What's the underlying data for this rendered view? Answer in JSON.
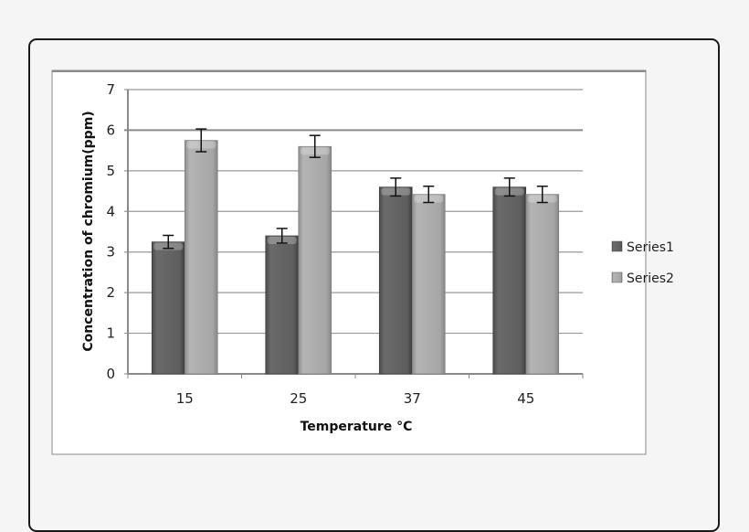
{
  "chart_data": {
    "type": "bar",
    "title": "",
    "xlabel": "Temperature °C",
    "ylabel": "Concentration of chromium(ppm)",
    "categories": [
      "15",
      "25",
      "37",
      "45"
    ],
    "series": [
      {
        "name": "Series1",
        "values": [
          3.25,
          3.4,
          4.6,
          4.6
        ],
        "error": [
          0.16,
          0.18,
          0.22,
          0.22
        ],
        "color": "#5a5a5a"
      },
      {
        "name": "Series2",
        "values": [
          5.75,
          5.6,
          4.42,
          4.42
        ],
        "error": [
          0.28,
          0.27,
          0.2,
          0.2
        ],
        "color": "#a8a8a8"
      }
    ],
    "ylim": [
      0,
      7
    ],
    "yticks": [
      "0",
      "1",
      "2",
      "3",
      "4",
      "5",
      "6",
      "7"
    ],
    "grid": true,
    "legend_position": "right",
    "error_bars": true
  },
  "legend": {
    "series1": "Series1",
    "series2": "Series2"
  },
  "axes": {
    "xlabel": "Temperature °C",
    "ylabel": "Concentration of chromium(ppm)"
  }
}
